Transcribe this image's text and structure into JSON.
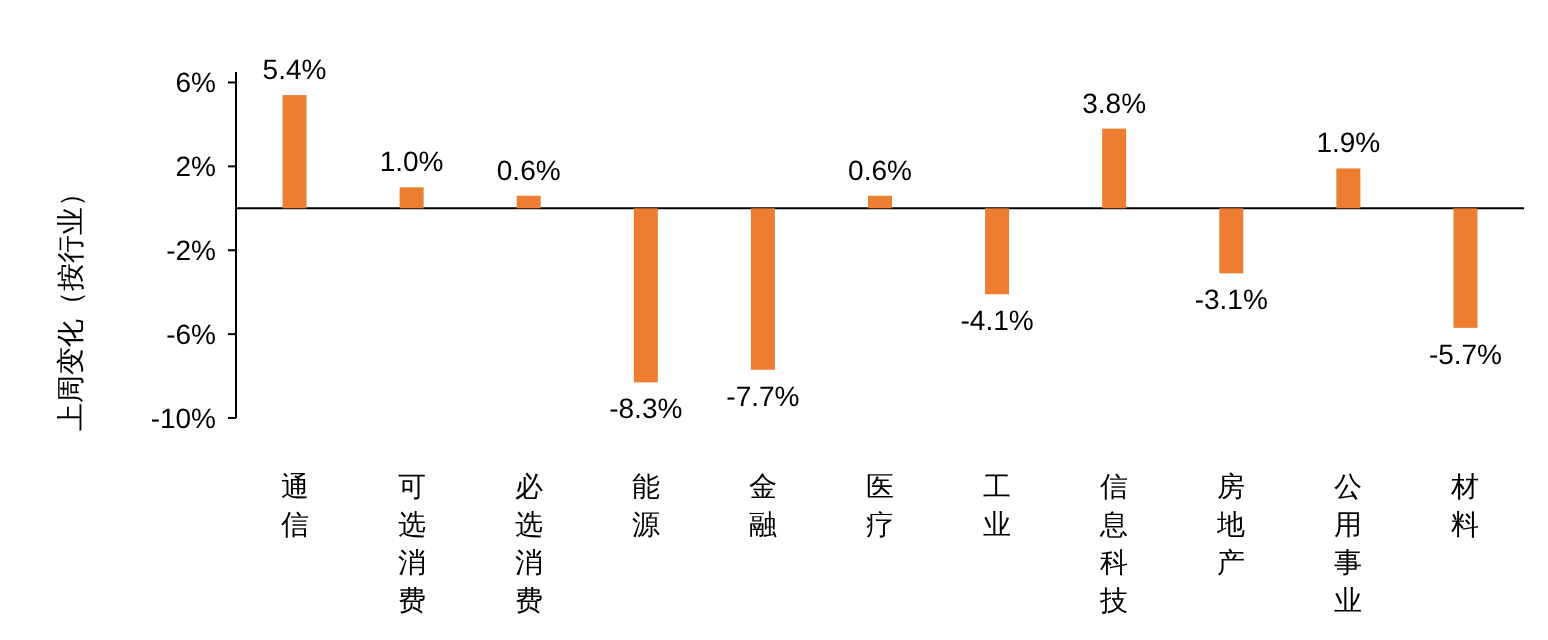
{
  "chart_data": {
    "type": "bar",
    "ylabel": "上周变化（按行业）",
    "categories": [
      "通信",
      "可选消费",
      "必选消费",
      "能源",
      "金融",
      "医疗",
      "工业",
      "信息科技",
      "房地产",
      "公用事业",
      "材料"
    ],
    "values": [
      5.4,
      1.0,
      0.6,
      -8.3,
      -7.7,
      0.6,
      -4.1,
      3.8,
      -3.1,
      1.9,
      -5.7
    ],
    "value_labels": [
      "5.4%",
      "1.0%",
      "0.6%",
      "-8.3%",
      "-7.7%",
      "0.6%",
      "-4.1%",
      "3.8%",
      "-3.1%",
      "1.9%",
      "-5.7%"
    ],
    "color": "#ed7d31",
    "ylim": [
      -10,
      6.5
    ],
    "yticks": [
      {
        "value": -10,
        "label": "-10%"
      },
      {
        "value": -6,
        "label": "-6%"
      },
      {
        "value": -2,
        "label": "-2%"
      },
      {
        "value": 2,
        "label": "2%"
      },
      {
        "value": 6,
        "label": "6%"
      }
    ],
    "grid": false
  }
}
